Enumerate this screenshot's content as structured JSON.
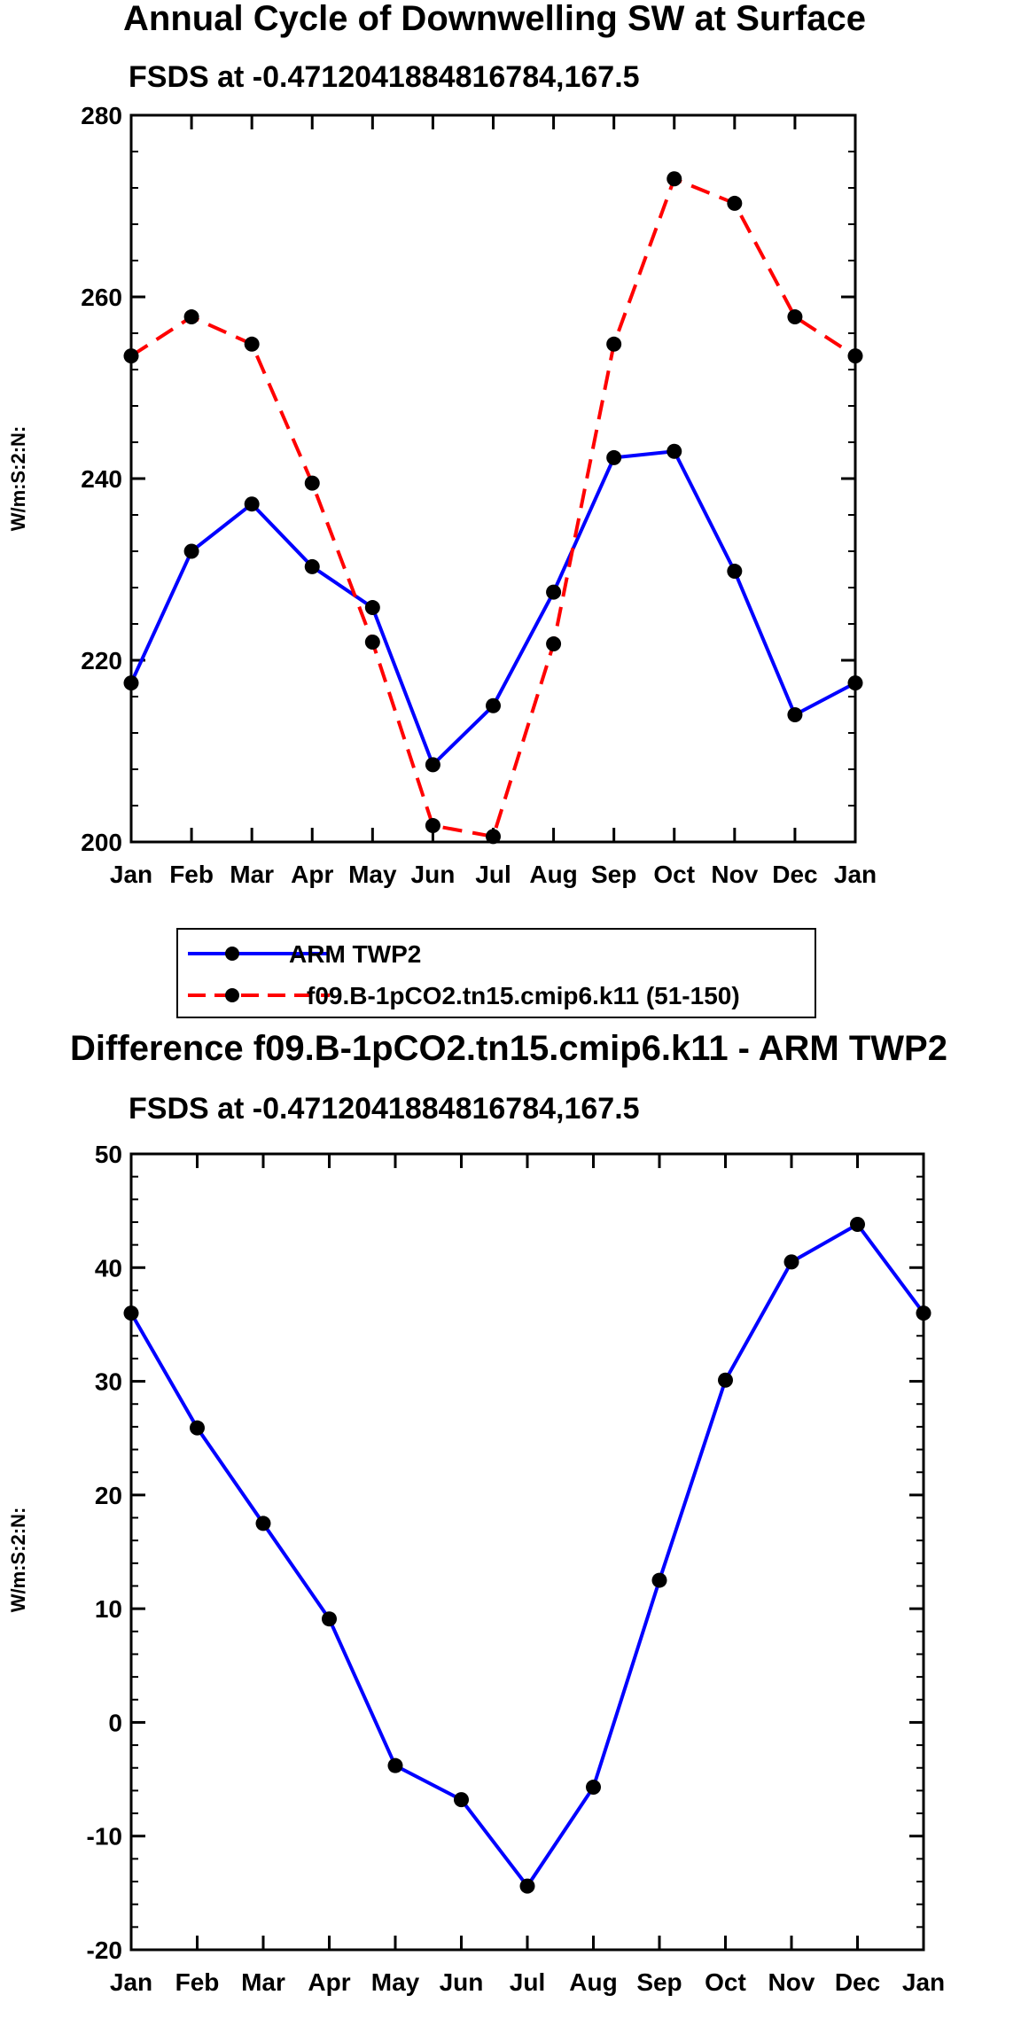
{
  "chart_data": [
    {
      "type": "line",
      "title": "Annual Cycle of Downwelling SW at Surface",
      "subtitle": "FSDS at -0.4712041884816784,167.5",
      "xlabel": "",
      "ylabel": "W/m:S:2:N:",
      "categories": [
        "Jan",
        "Feb",
        "Mar",
        "Apr",
        "May",
        "Jun",
        "Jul",
        "Aug",
        "Sep",
        "Oct",
        "Nov",
        "Dec",
        "Jan"
      ],
      "ylim": [
        200,
        280
      ],
      "yticks": [
        200,
        220,
        240,
        260,
        280
      ],
      "series": [
        {
          "name": "ARM TWP2",
          "color": "#0000ff",
          "dash": "solid",
          "values": [
            217.5,
            232.0,
            237.2,
            230.3,
            225.8,
            208.5,
            215.0,
            227.5,
            242.3,
            243.0,
            229.8,
            214.0,
            217.5
          ]
        },
        {
          "name": "f09.B-1pCO2.tn15.cmip6.k11 (51-150)",
          "color": "#ff0000",
          "dash": "dashed",
          "values": [
            253.5,
            257.8,
            254.8,
            239.5,
            222.0,
            201.8,
            200.6,
            221.8,
            254.8,
            273.0,
            270.3,
            257.8,
            253.5
          ]
        }
      ],
      "legend": [
        "ARM TWP2",
        "f09.B-1pCO2.tn15.cmip6.k11 (51-150)"
      ]
    },
    {
      "type": "line",
      "title": "Difference f09.B-1pCO2.tn15.cmip6.k11 - ARM TWP2",
      "subtitle": "FSDS at -0.4712041884816784,167.5",
      "xlabel": "",
      "ylabel": "W/m:S:2:N:",
      "categories": [
        "Jan",
        "Feb",
        "Mar",
        "Apr",
        "May",
        "Jun",
        "Jul",
        "Aug",
        "Sep",
        "Oct",
        "Nov",
        "Dec",
        "Jan"
      ],
      "ylim": [
        -20,
        50
      ],
      "yticks": [
        -20,
        -10,
        0,
        10,
        20,
        30,
        40,
        50
      ],
      "series": [
        {
          "name": "Difference",
          "color": "#0000ff",
          "dash": "solid",
          "values": [
            36.0,
            25.9,
            17.5,
            9.1,
            -3.8,
            -6.8,
            -14.4,
            -5.7,
            12.5,
            30.1,
            40.5,
            43.8,
            36.0
          ]
        }
      ]
    }
  ]
}
